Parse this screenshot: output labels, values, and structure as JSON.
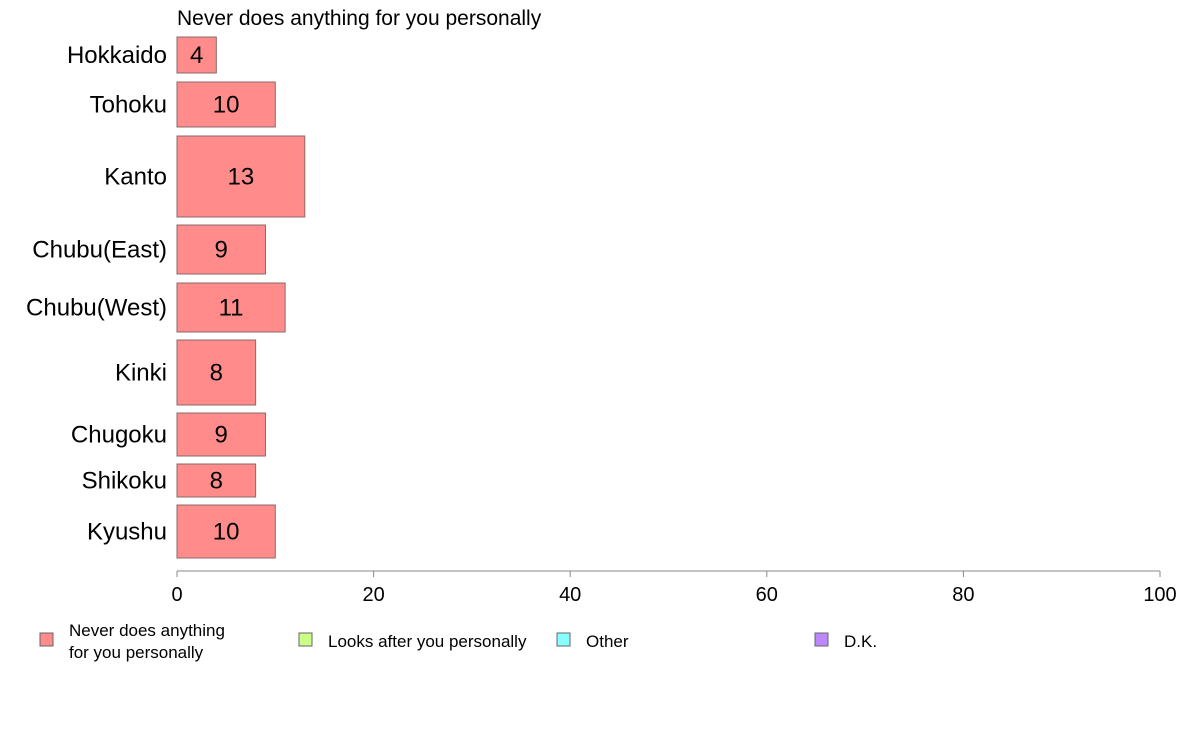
{
  "chart_data": {
    "type": "bar",
    "orientation": "horizontal",
    "title": "Never does anything for you personally",
    "categories": [
      "Hokkaido",
      "Tohoku",
      "Kanto",
      "Chubu(East)",
      "Chubu(West)",
      "Kinki",
      "Chugoku",
      "Shikoku",
      "Kyushu"
    ],
    "series": [
      {
        "name": "Never does anything for you personally",
        "color": "#ff8b8b",
        "values": [
          4,
          10,
          13,
          9,
          11,
          8,
          9,
          8,
          10
        ]
      }
    ],
    "value_labels": [
      "4",
      "10",
      "13",
      "9",
      "11",
      "8",
      "9",
      "8",
      "10"
    ],
    "xlim": [
      0,
      100
    ],
    "x_ticks": [
      0,
      20,
      40,
      60,
      80,
      100
    ],
    "x_tick_labels": [
      "0",
      "20",
      "40",
      "60",
      "80",
      "100"
    ],
    "grid": false,
    "legend_position": "bottom",
    "legend": [
      {
        "label_lines": [
          "Never does anything",
          "for you personally"
        ],
        "color": "#ff8b8b"
      },
      {
        "label_lines": [
          "Looks after you personally"
        ],
        "color": "#ccff88"
      },
      {
        "label_lines": [
          "Other"
        ],
        "color": "#88ffff"
      },
      {
        "label_lines": [
          "D.K."
        ],
        "color": "#bb88ff"
      }
    ]
  }
}
